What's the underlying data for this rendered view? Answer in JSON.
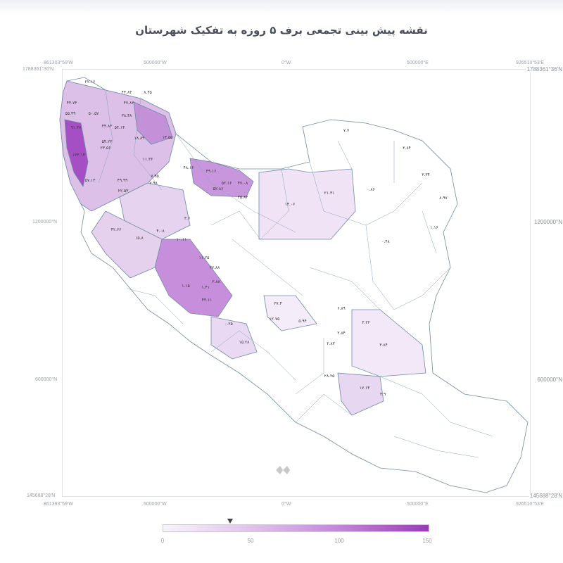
{
  "title": "نقشه پیش بینی تجمعی برف ۵ روزه به تفکیک شهرستان",
  "axes": {
    "top": [
      "861303°59'W",
      "500000°W",
      "0°W",
      "500000°E",
      "926510°53'E"
    ],
    "bottom": [
      "861393°59'W",
      "500000°W",
      "0°W",
      "500000°E",
      "926510°53'E"
    ],
    "left": [
      "1788361°36'N",
      "1200000°N",
      "600000°N",
      "145688°28'N"
    ],
    "right": [
      "1788361°36'N",
      "1200000°N",
      "600000°N",
      "145688°28'N"
    ]
  },
  "colorbar": {
    "min": 0,
    "max": 150,
    "ticks": [
      "0",
      "50",
      "100",
      "150"
    ],
    "marker_value": 38,
    "colors": [
      "#f7f3fa",
      "#9a3bb6"
    ]
  },
  "map_labels": [
    "۲۲.۱۶",
    "۴۴.۸۳",
    "۸.۴۵",
    "۴۴.۷۴",
    "۴۷.۸۳",
    "۵۵.۴۹",
    "۵۰.۵۷",
    "۳۸.۴۸",
    "۹۱.۴۷",
    "۴۴.۸۳",
    "۵۴.۱۴",
    "۱۸.۸۹",
    "۱۴.۵۵",
    "۵۴.۲۳",
    "۲۳.۵۶",
    "۱۲۳.۱۴",
    "۱۱.۳۶",
    "۴۸.۱۶",
    "۵۷.۱۳",
    "۴۹.۹۹",
    "۷.۹۵",
    "۷.۹۸",
    "۲۲.۵۳",
    "۴۹.۱۶",
    "۵۲.۱۶",
    "۵۲.۸۶",
    "۴۷.۰۸",
    "۲۵.۸۴",
    "۱۴.۰۶",
    "۲۱.۳۱",
    "۰.۸۶",
    "۷.۷",
    "۲.۸۴",
    "۳.۳۴",
    "۴۲.۶۶",
    "۴.۰۸",
    "۱۰.۱۱",
    "۱۵.۸",
    "۳.۷",
    "۱۱.۲۵",
    "۳۷.۸۸",
    "۳.۸۸",
    "۱.۱۵",
    "۱.۴۱",
    "۴۳.۱۱",
    "۳۷.۴",
    "۱۲.۷۵",
    "۵.۹۴",
    "۶.۸۹",
    "۳.۲۲",
    "۲.۸۴",
    "۲.۸۳",
    "۳.۸۴",
    "۰.۲۵",
    "۱۵.۲۸",
    "۲۸.۲۵",
    "۱۷.۱۴",
    "۳.۹",
    "۸.۹۷",
    "۱.۱۶",
    "۰.۴۸"
  ]
}
